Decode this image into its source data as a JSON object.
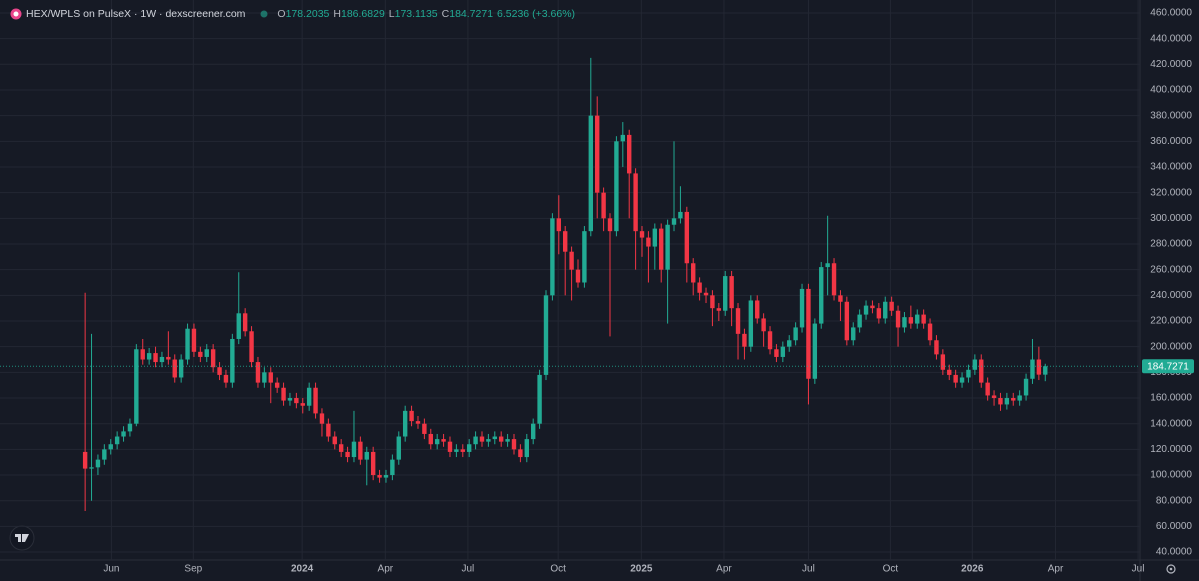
{
  "chart_data": {
    "type": "candlestick",
    "title": "HEX/WPLS on PulseX · 1W · dexscreener.com",
    "ohlc_labels": [
      "O",
      "H",
      "L",
      "C"
    ],
    "change": 6.5236,
    "change_label": "(+3.66%)",
    "up_color": "#22ab94",
    "down_color": "#f23645",
    "grid": true,
    "ylim": [
      33.8,
      470.1
    ],
    "yticks": [
      {
        "value": 40,
        "label": "40.0000"
      },
      {
        "value": 60,
        "label": "60.0000"
      },
      {
        "value": 80,
        "label": "80.0000"
      },
      {
        "value": 100,
        "label": "100.0000"
      },
      {
        "value": 120,
        "label": "120.0000"
      },
      {
        "value": 140,
        "label": "140.0000"
      },
      {
        "value": 160,
        "label": "160.0000"
      },
      {
        "value": 180,
        "label": "180.0000"
      },
      {
        "value": 200,
        "label": "200.0000"
      },
      {
        "value": 220,
        "label": "220.0000"
      },
      {
        "value": 240,
        "label": "240.0000"
      },
      {
        "value": 260,
        "label": "260.0000"
      },
      {
        "value": 280,
        "label": "280.0000"
      },
      {
        "value": 300,
        "label": "300.0000"
      },
      {
        "value": 320,
        "label": "320.0000"
      },
      {
        "value": 340,
        "label": "340.0000"
      },
      {
        "value": 360,
        "label": "360.0000"
      },
      {
        "value": 380,
        "label": "380.0000"
      },
      {
        "value": 400,
        "label": "400.0000"
      },
      {
        "value": 420,
        "label": "420.0000"
      },
      {
        "value": 440,
        "label": "440.0000"
      },
      {
        "value": 460,
        "label": "460.0000"
      }
    ],
    "xlim": [
      -13.3,
      164.8
    ],
    "xticks": [
      {
        "value": 4.1,
        "label": "Jun"
      },
      {
        "value": 16.9,
        "label": "Sep"
      },
      {
        "value": 33.9,
        "label": "2024"
      },
      {
        "value": 46.9,
        "label": "Apr"
      },
      {
        "value": 59.8,
        "label": "Jul"
      },
      {
        "value": 73.9,
        "label": "Oct"
      },
      {
        "value": 86.9,
        "label": "2025"
      },
      {
        "value": 99.8,
        "label": "Apr"
      },
      {
        "value": 113,
        "label": "Jul"
      },
      {
        "value": 125.8,
        "label": "Oct"
      },
      {
        "value": 138.6,
        "label": "2026"
      },
      {
        "value": 151.6,
        "label": "Apr"
      },
      {
        "value": 164.5,
        "label": "Jul"
      }
    ],
    "open": [
      118,
      105,
      106,
      112,
      120,
      124,
      130,
      134,
      140,
      198,
      190,
      195,
      188,
      192,
      190,
      176,
      190,
      214,
      196,
      192,
      198,
      184,
      178,
      172,
      206,
      226,
      212,
      188,
      172,
      180,
      172,
      168,
      158,
      160,
      156,
      154,
      168,
      148,
      140,
      130,
      124,
      118,
      114,
      126,
      112,
      118,
      100,
      98,
      100,
      112,
      130,
      150,
      142,
      140,
      132,
      124,
      128,
      126,
      118,
      120,
      118,
      124,
      130,
      126,
      128,
      130,
      126,
      128,
      120,
      114,
      128,
      140,
      178,
      240,
      300,
      290,
      274,
      260,
      250,
      290,
      380,
      320,
      300,
      290,
      360,
      365,
      335,
      290,
      285,
      278,
      292,
      260,
      295,
      300,
      305,
      265,
      250,
      242,
      240,
      230,
      228,
      255,
      230,
      210,
      200,
      236,
      222,
      212,
      198,
      192,
      200,
      205,
      215,
      245,
      175,
      218,
      262,
      265,
      240,
      235,
      205,
      215,
      225,
      232,
      230,
      222,
      235,
      228,
      215,
      223,
      218,
      225,
      218,
      205,
      194,
      182,
      178,
      172,
      176,
      182,
      190,
      172,
      162,
      160,
      155,
      160,
      158,
      162,
      175,
      190,
      178.2035
    ],
    "high": [
      242,
      210,
      116,
      124,
      128,
      134,
      138,
      144,
      202,
      206,
      199,
      200,
      196,
      212,
      194,
      194,
      218,
      218,
      200,
      202,
      202,
      188,
      182,
      210,
      258,
      230,
      216,
      192,
      184,
      184,
      176,
      172,
      164,
      164,
      160,
      172,
      172,
      152,
      144,
      134,
      128,
      122,
      150,
      130,
      122,
      122,
      104,
      104,
      116,
      134,
      154,
      154,
      146,
      144,
      136,
      132,
      132,
      130,
      124,
      124,
      128,
      134,
      134,
      132,
      134,
      134,
      132,
      132,
      124,
      132,
      144,
      182,
      244,
      304,
      318,
      294,
      278,
      268,
      294,
      425,
      395,
      324,
      304,
      364,
      375,
      369,
      339,
      294,
      290,
      296,
      296,
      299,
      360,
      325,
      309,
      269,
      254,
      246,
      244,
      234,
      259,
      259,
      234,
      214,
      240,
      240,
      226,
      216,
      202,
      204,
      209,
      219,
      249,
      249,
      222,
      266,
      302,
      269,
      244,
      239,
      219,
      229,
      236,
      236,
      234,
      239,
      239,
      232,
      227,
      232,
      229,
      229,
      222,
      209,
      198,
      186,
      182,
      180,
      186,
      194,
      194,
      176,
      166,
      164,
      164,
      164,
      166,
      179,
      206,
      200,
      186.6829
    ],
    "low": [
      72,
      80,
      100,
      108,
      116,
      120,
      126,
      130,
      138,
      186,
      186,
      184,
      184,
      186,
      172,
      172,
      186,
      192,
      188,
      188,
      180,
      174,
      168,
      168,
      202,
      208,
      184,
      168,
      168,
      156,
      164,
      154,
      154,
      152,
      148,
      150,
      144,
      130,
      126,
      120,
      114,
      110,
      110,
      108,
      92,
      96,
      94,
      94,
      96,
      108,
      126,
      138,
      136,
      128,
      120,
      120,
      122,
      114,
      114,
      114,
      114,
      120,
      122,
      122,
      124,
      122,
      122,
      116,
      110,
      110,
      124,
      136,
      174,
      236,
      272,
      240,
      236,
      246,
      246,
      286,
      300,
      290,
      208,
      286,
      340,
      300,
      260,
      270,
      250,
      260,
      250,
      218,
      290,
      296,
      250,
      240,
      236,
      234,
      216,
      220,
      224,
      216,
      190,
      190,
      196,
      218,
      200,
      194,
      188,
      188,
      196,
      201,
      211,
      155,
      171,
      214,
      240,
      236,
      220,
      201,
      201,
      211,
      221,
      226,
      218,
      218,
      224,
      200,
      211,
      214,
      214,
      214,
      201,
      190,
      178,
      174,
      168,
      168,
      172,
      178,
      168,
      158,
      154,
      150,
      151,
      154,
      154,
      158,
      171,
      174,
      173.1135
    ],
    "close": [
      105,
      106,
      112,
      120,
      124,
      130,
      134,
      140,
      198,
      190,
      195,
      188,
      192,
      190,
      176,
      190,
      214,
      196,
      192,
      198,
      184,
      178,
      172,
      206,
      226,
      212,
      188,
      172,
      180,
      172,
      168,
      158,
      160,
      156,
      154,
      168,
      148,
      140,
      130,
      124,
      118,
      114,
      126,
      112,
      118,
      100,
      98,
      100,
      112,
      130,
      150,
      142,
      140,
      132,
      124,
      128,
      126,
      118,
      120,
      118,
      124,
      130,
      126,
      128,
      130,
      126,
      128,
      120,
      114,
      128,
      140,
      178,
      240,
      300,
      290,
      274,
      260,
      250,
      290,
      380,
      320,
      300,
      290,
      360,
      365,
      335,
      290,
      285,
      278,
      292,
      260,
      295,
      300,
      305,
      265,
      250,
      242,
      240,
      230,
      228,
      255,
      230,
      210,
      200,
      236,
      222,
      212,
      198,
      192,
      200,
      205,
      215,
      245,
      175,
      218,
      262,
      265,
      240,
      235,
      205,
      215,
      225,
      232,
      230,
      222,
      235,
      228,
      215,
      223,
      218,
      225,
      218,
      205,
      194,
      182,
      178,
      172,
      176,
      182,
      190,
      172,
      162,
      160,
      155,
      160,
      158,
      162,
      175,
      190,
      178.2035,
      184.7271
    ]
  }
}
